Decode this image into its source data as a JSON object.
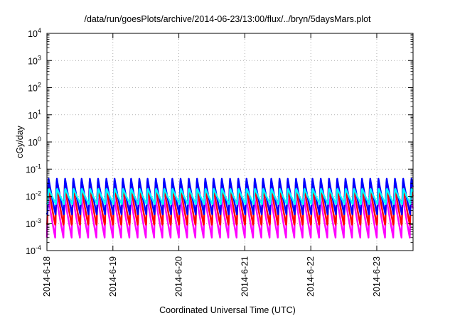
{
  "chart_data": {
    "type": "line",
    "title": "/data/run/goesPlots/archive/2014-06-23/13:00/flux/../bryn/5daysMars.plot",
    "xlabel": "Coordinated Universal Time (UTC)",
    "ylabel": "cGy/day",
    "x_ticks": [
      "2014-6-18",
      "2014-6-19",
      "2014-6-20",
      "2014-6-21",
      "2014-6-22",
      "2014-6-23"
    ],
    "xlim_days": [
      0,
      5.55
    ],
    "y_scale": "log",
    "ylim": [
      0.0001,
      10000
    ],
    "y_ticks": [
      {
        "base": "10",
        "exp": "4"
      },
      {
        "base": "10",
        "exp": "3"
      },
      {
        "base": "10",
        "exp": "2"
      },
      {
        "base": "10",
        "exp": "1"
      },
      {
        "base": "10",
        "exp": "0"
      },
      {
        "base": "10",
        "exp": "-1"
      },
      {
        "base": "10",
        "exp": "-2"
      },
      {
        "base": "10",
        "exp": "-3"
      },
      {
        "base": "10",
        "exp": "-4"
      }
    ],
    "grid": true,
    "oscillation_period_days": 0.125,
    "series": [
      {
        "color": "#ff00ff",
        "peak": 0.012,
        "trough": 0.0003
      },
      {
        "color": "#ff0000",
        "peak": 0.028,
        "trough": 0.0008
      },
      {
        "color": "#0000ff",
        "peak": 0.05,
        "trough": 0.002
      },
      {
        "color": "#00ffff",
        "peak": 0.02,
        "trough": 0.005
      }
    ]
  }
}
